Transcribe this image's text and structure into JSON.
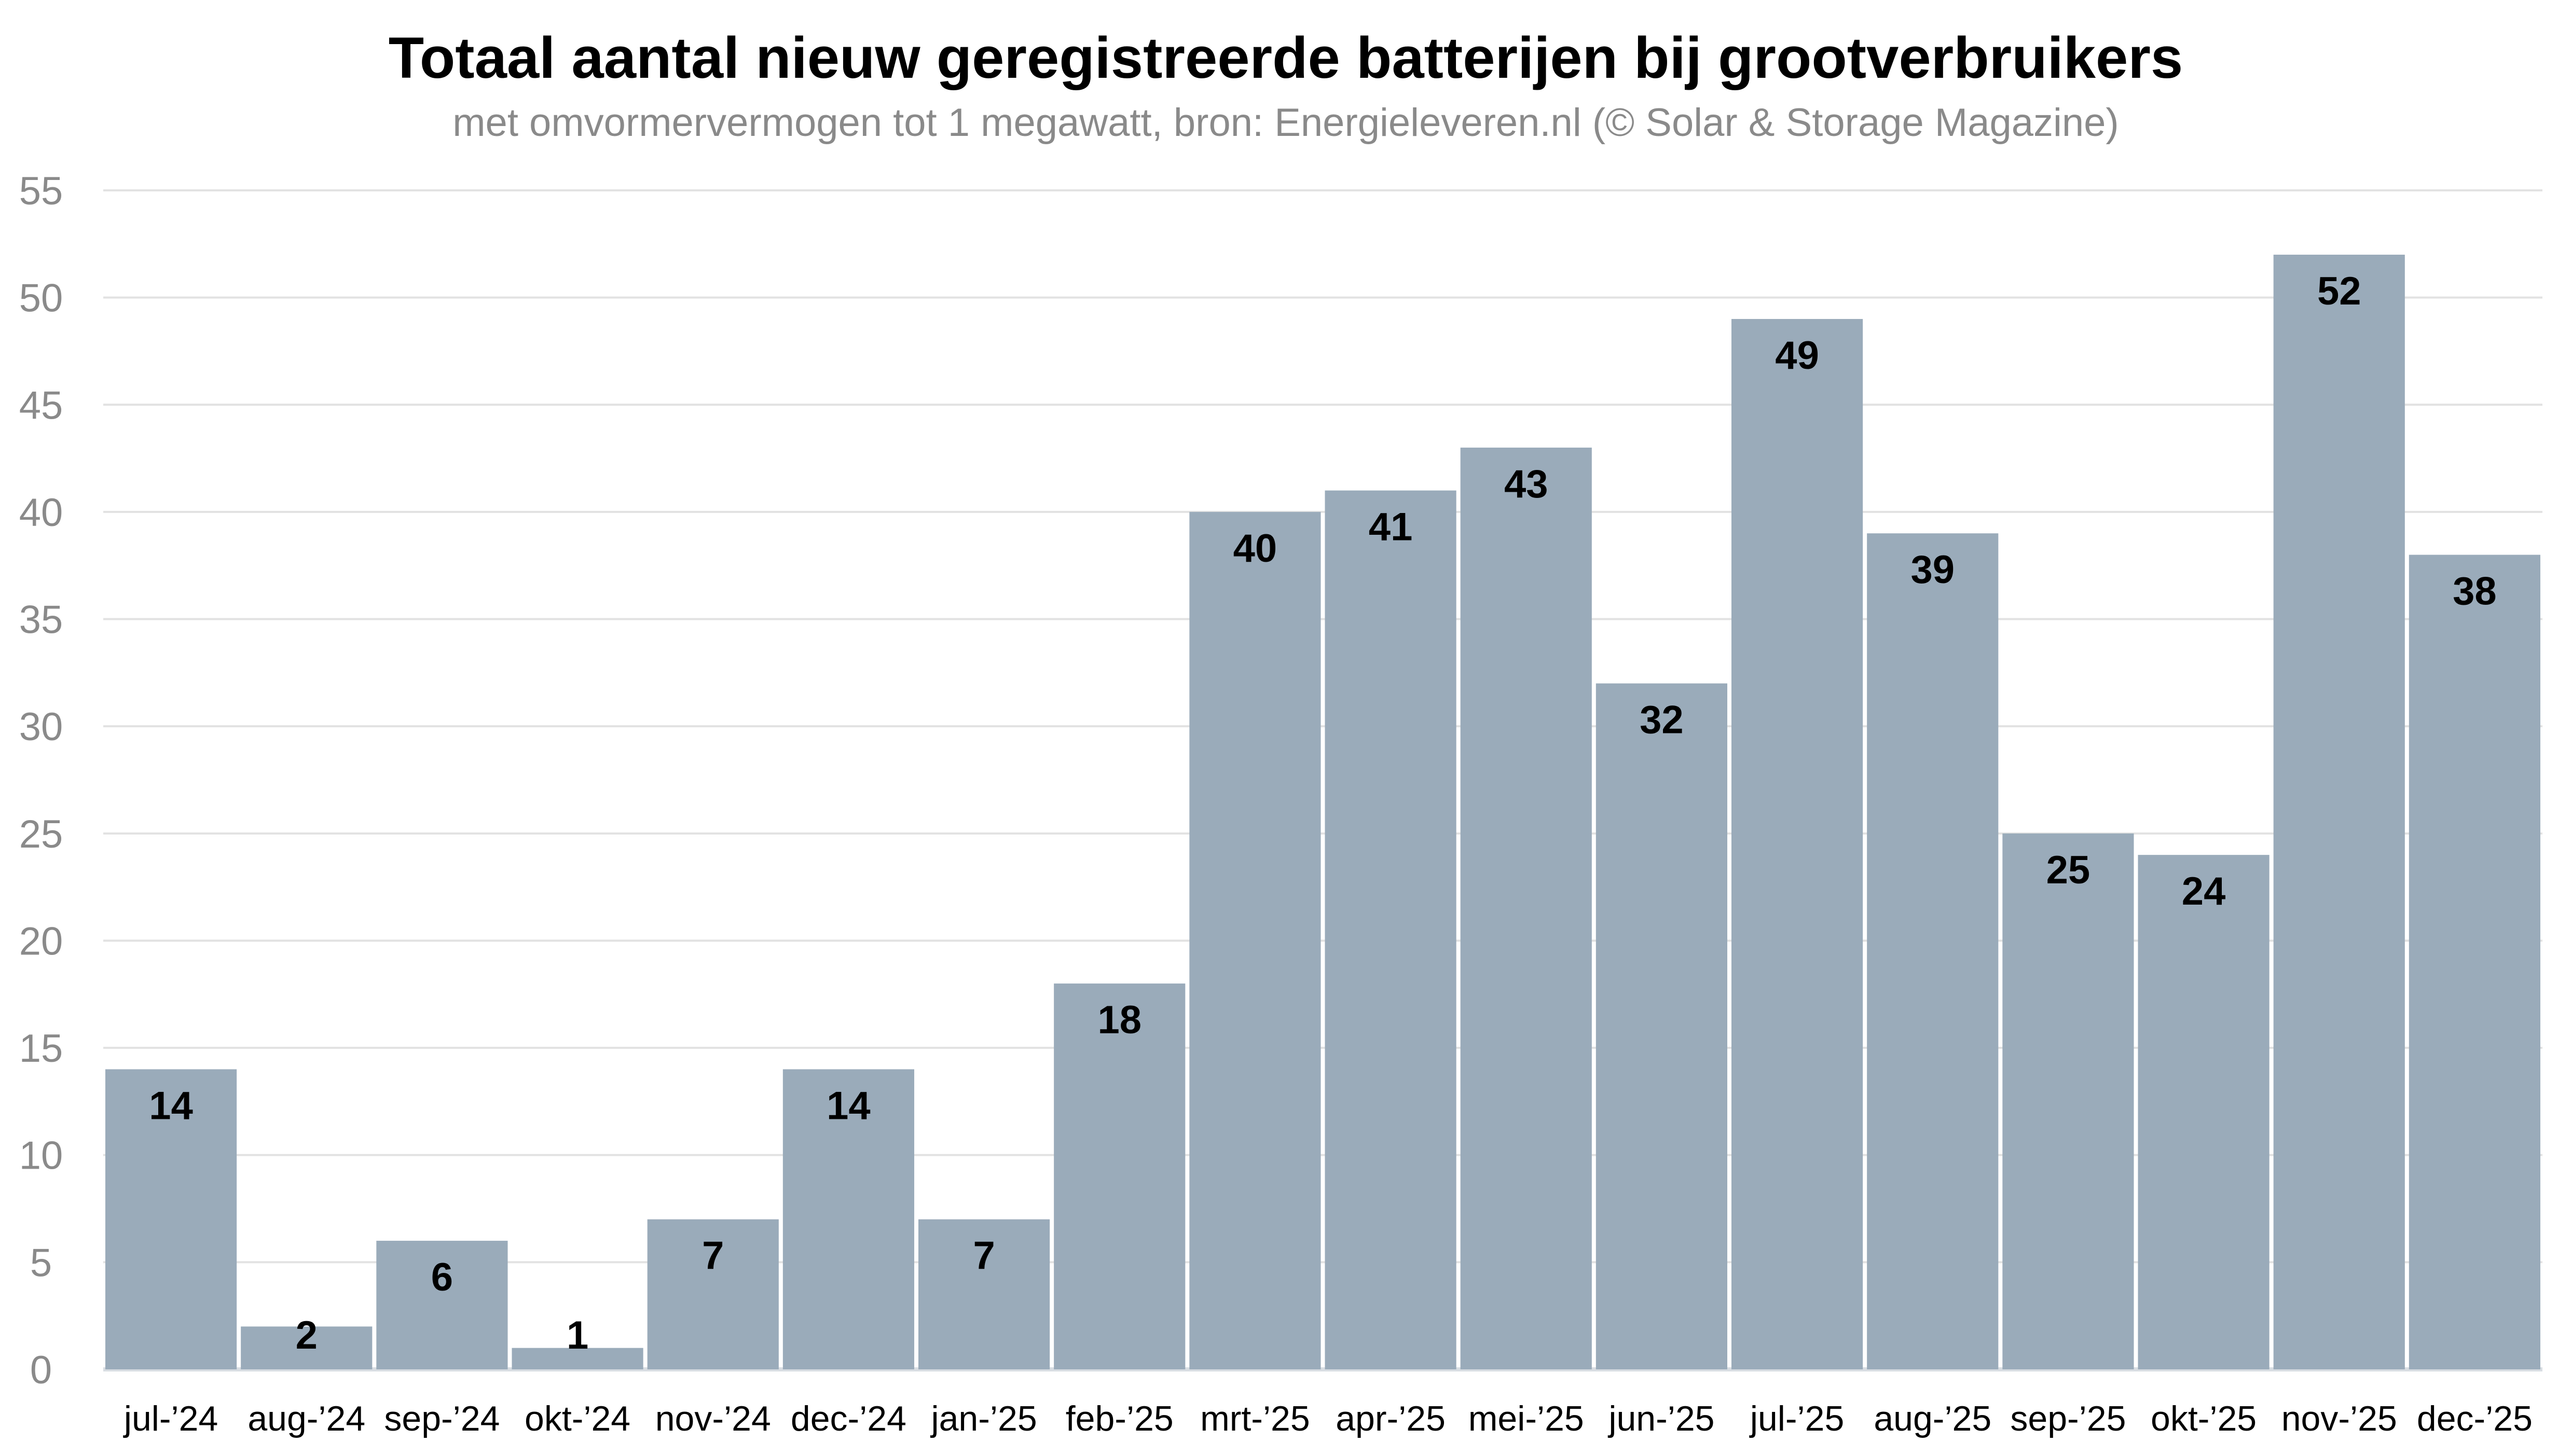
{
  "chart_data": {
    "type": "bar",
    "title": "Totaal aantal nieuw geregistreerde batterijen bij grootverbruikers",
    "subtitle": "met omvormervermogen tot 1 megawatt, bron: Energieleveren.nl (© Solar & Storage Magazine)",
    "xlabel": "",
    "ylabel": "",
    "ylim": [
      0,
      55
    ],
    "yticks": [
      0,
      5,
      10,
      15,
      20,
      25,
      30,
      35,
      40,
      45,
      50,
      55
    ],
    "grid": true,
    "bar_color": "#9aabba",
    "categories": [
      "jul-’24",
      "aug-’24",
      "sep-’24",
      "okt-’24",
      "nov-’24",
      "dec-’24",
      "jan-’25",
      "feb-’25",
      "mrt-’25",
      "apr-’25",
      "mei-’25",
      "jun-’25",
      "jul-’25",
      "aug-’25",
      "sep-’25",
      "okt-’25",
      "nov-’25",
      "dec-’25"
    ],
    "values": [
      14,
      2,
      6,
      1,
      7,
      14,
      7,
      18,
      40,
      41,
      43,
      32,
      49,
      39,
      25,
      24,
      52,
      38
    ]
  }
}
